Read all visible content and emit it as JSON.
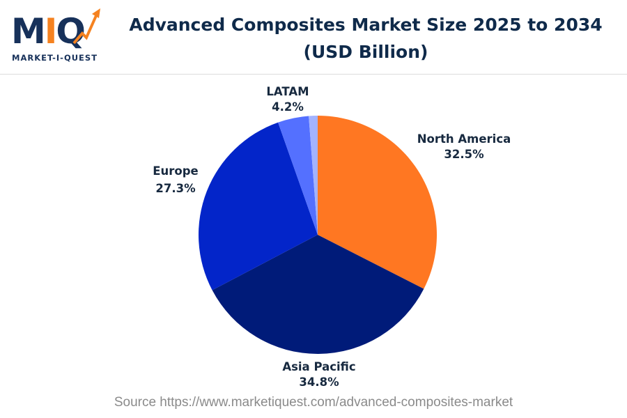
{
  "logo": {
    "brand": "MIQ",
    "tagline": "MARKET-I-QUEST"
  },
  "header": {
    "title_line1": "Advanced Composites Market Size 2025 to 2034",
    "title_line2": "(USD Billion)"
  },
  "chart_data": {
    "type": "pie",
    "title": "Advanced Composites Market Size 2025 to 2034 (USD Billion)",
    "start": "12 o'clock, clockwise",
    "slices": [
      {
        "label": "North America",
        "value": 32.5,
        "display": "32.5%",
        "color": "#ff7722"
      },
      {
        "label": "Asia Pacific",
        "value": 34.8,
        "display": "34.8%",
        "color": "#001b79"
      },
      {
        "label": "Europe",
        "value": 27.3,
        "display": "27.3%",
        "color": "#0325c9"
      },
      {
        "label": "LATAM",
        "value": 4.2,
        "display": "4.2%",
        "color": "#5470ff"
      },
      {
        "label": "",
        "value": 1.2,
        "display": "",
        "color": "#a3b3ff"
      }
    ]
  },
  "footer": {
    "source": "Source https://www.marketiquest.com/advanced-composites-market"
  }
}
